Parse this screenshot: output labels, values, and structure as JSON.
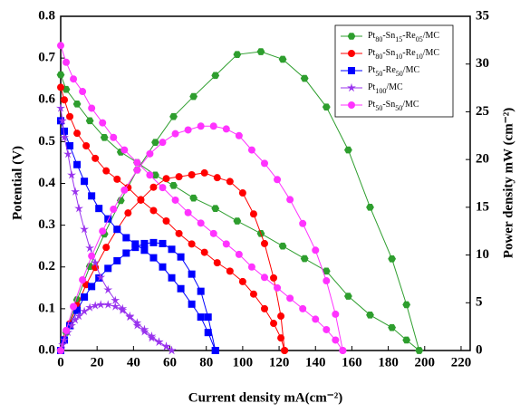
{
  "chart_data": {
    "type": "line",
    "x_label": "Current density mA(cm⁻²)",
    "y_label": "Potential (V)",
    "y2_label": "Power density mW (cm⁻²)",
    "xlim": [
      0,
      225
    ],
    "xticks": [
      0,
      20,
      40,
      60,
      80,
      100,
      120,
      140,
      160,
      180,
      200,
      220
    ],
    "ylim": [
      0,
      0.8
    ],
    "yticks": [
      {
        "value": 0,
        "label": "0.0"
      },
      0.1,
      0.2,
      0.3,
      0.4,
      0.5,
      0.6,
      0.7,
      0.8
    ],
    "y2lim": [
      0,
      35
    ],
    "y2ticks": [
      0,
      5,
      10,
      15,
      20,
      25,
      30,
      35
    ],
    "legend": "upper right",
    "series": [
      {
        "name": "Pt80-Sn15-Re05/MC",
        "color": "#2e9e2e",
        "marker": "hexagon",
        "x": [
          0,
          3,
          9,
          16,
          24,
          33,
          42,
          52,
          62,
          73,
          85,
          97,
          110,
          122,
          134,
          146,
          158,
          170,
          182,
          190,
          197
        ],
        "values": [
          0.66,
          0.625,
          0.59,
          0.55,
          0.51,
          0.475,
          0.45,
          0.42,
          0.395,
          0.365,
          0.34,
          0.31,
          0.28,
          0.25,
          0.22,
          0.19,
          0.13,
          0.085,
          0.055,
          0.025,
          0
        ],
        "power": [
          0,
          1.9,
          5.3,
          8.8,
          12.2,
          15.7,
          18.9,
          21.8,
          24.5,
          26.6,
          28.8,
          31,
          31.3,
          30.5,
          28.5,
          25.5,
          21,
          15,
          9.6,
          4.8,
          0
        ],
        "power_axis": "y2"
      },
      {
        "name": "Pt80-Sn10-Re10/MC",
        "color": "#ff0000",
        "marker": "circle",
        "x": [
          0,
          2,
          5,
          9,
          14,
          19,
          25,
          31,
          37,
          44,
          51,
          58,
          65,
          72,
          79,
          86,
          93,
          100,
          106,
          112,
          117,
          121,
          123
        ],
        "values": [
          0.63,
          0.6,
          0.56,
          0.52,
          0.49,
          0.46,
          0.43,
          0.41,
          0.39,
          0.36,
          0.335,
          0.31,
          0.28,
          0.255,
          0.235,
          0.21,
          0.19,
          0.165,
          0.135,
          0.1,
          0.065,
          0.03,
          0
        ],
        "power": [
          0,
          1.2,
          2.8,
          4.7,
          6.9,
          8.7,
          10.8,
          12.7,
          14.4,
          15.8,
          17.1,
          18,
          18.2,
          18.4,
          18.6,
          18.1,
          17.7,
          16.5,
          14.3,
          11.2,
          7.6,
          3.6,
          0
        ],
        "power_axis": "y2"
      },
      {
        "name": "Pt50-Re50/MC",
        "color": "#0000ff",
        "marker": "square",
        "x": [
          0,
          2,
          5,
          9,
          13,
          17,
          21,
          26,
          31,
          36,
          41,
          46,
          51,
          56,
          61,
          66,
          72,
          77,
          81,
          85
        ],
        "values": [
          0.55,
          0.525,
          0.49,
          0.445,
          0.405,
          0.37,
          0.34,
          0.315,
          0.29,
          0.27,
          0.255,
          0.24,
          0.222,
          0.2,
          0.174,
          0.148,
          0.111,
          0.08,
          0.043,
          0
        ],
        "power": [
          0,
          1.1,
          2.6,
          4.2,
          5.6,
          6.7,
          7.6,
          8.6,
          9.4,
          10.2,
          10.8,
          11.2,
          11.3,
          11.2,
          10.6,
          9.8,
          8,
          6.2,
          3.5,
          0
        ],
        "power_axis": "y2"
      },
      {
        "name": "Pt100/MC",
        "color": "#9933ee",
        "marker": "star",
        "x": [
          0,
          1,
          2,
          4,
          6,
          8,
          10,
          13,
          16,
          19,
          22,
          26,
          30,
          34,
          38,
          42,
          46,
          50,
          54,
          58,
          61
        ],
        "values": [
          0.58,
          0.55,
          0.51,
          0.47,
          0.42,
          0.38,
          0.34,
          0.29,
          0.245,
          0.21,
          0.175,
          0.145,
          0.12,
          0.1,
          0.08,
          0.06,
          0.045,
          0.03,
          0.02,
          0.01,
          0
        ],
        "power": [
          0,
          0.6,
          1.1,
          1.9,
          2.6,
          3.2,
          3.6,
          4.1,
          4.5,
          4.7,
          4.8,
          4.8,
          4.6,
          4.2,
          3.6,
          2.9,
          2.2,
          1.5,
          0.9,
          0.4,
          0
        ],
        "power_axis": "y2"
      },
      {
        "name": "Pt50-Sn50/MC",
        "color": "#ff33ff",
        "marker": "circle",
        "x": [
          0,
          3,
          7,
          12,
          17,
          23,
          29,
          35,
          42,
          49,
          56,
          63,
          70,
          77,
          84,
          91,
          98,
          105,
          112,
          119,
          126,
          133,
          140,
          146,
          151,
          155
        ],
        "values": [
          0.73,
          0.69,
          0.65,
          0.62,
          0.58,
          0.545,
          0.51,
          0.48,
          0.45,
          0.42,
          0.39,
          0.36,
          0.33,
          0.305,
          0.28,
          0.255,
          0.23,
          0.2,
          0.175,
          0.15,
          0.125,
          0.1,
          0.075,
          0.05,
          0.025,
          0
        ],
        "power": [
          0,
          2.1,
          4.6,
          7.4,
          9.9,
          12.5,
          14.8,
          16.8,
          18.9,
          20.6,
          21.8,
          22.7,
          23.1,
          23.5,
          23.5,
          23.2,
          22.5,
          21,
          19.6,
          17.9,
          15.8,
          13.3,
          10.5,
          7.3,
          3.8,
          0
        ],
        "power_axis": "y2"
      }
    ]
  }
}
